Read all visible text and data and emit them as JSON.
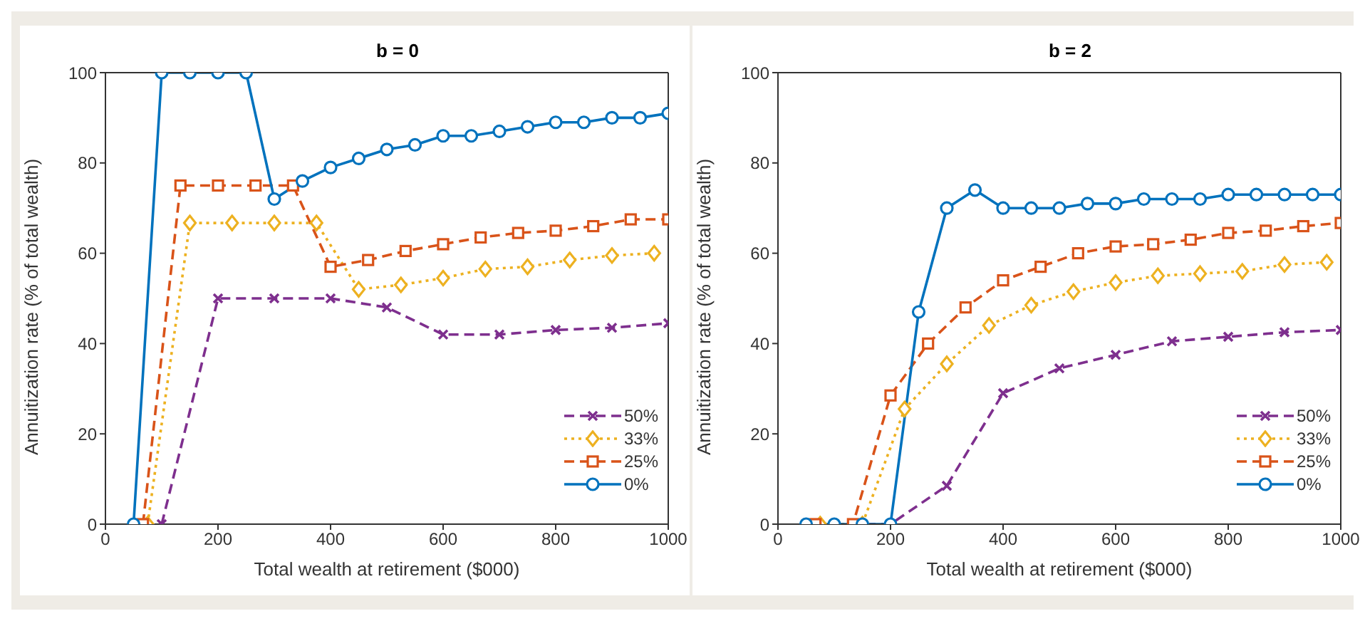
{
  "chart_data": [
    {
      "type": "line",
      "title": "b = 0",
      "xlabel": "Total wealth at retirement ($000)",
      "ylabel": "Annuitization rate (% of total wealth)",
      "xlim": [
        0,
        1000
      ],
      "xticks": [
        0,
        200,
        400,
        600,
        800,
        1000
      ],
      "ylim": [
        0,
        100
      ],
      "yticks": [
        0,
        20,
        40,
        60,
        80,
        100
      ],
      "grid": false,
      "legend": "bottom right",
      "series": [
        {
          "name": "50%",
          "color": "#7e2f8e",
          "marker": "cross",
          "line_style": "dashed",
          "x": [
            100,
            200,
            300,
            400,
            500,
            600,
            700,
            800,
            900,
            1000
          ],
          "values": [
            0,
            50,
            50,
            50,
            48,
            42,
            42,
            43,
            43.5,
            44.5
          ]
        },
        {
          "name": "33%",
          "color": "#edb120",
          "marker": "diamond",
          "line_style": "dotted",
          "x": [
            75,
            150,
            225,
            300,
            375,
            450,
            525,
            600,
            675,
            750,
            825,
            900,
            975
          ],
          "values": [
            0,
            66.7,
            66.7,
            66.7,
            66.7,
            52,
            53,
            54.5,
            56.5,
            57,
            58.5,
            59.5,
            60
          ]
        },
        {
          "name": "25%",
          "color": "#d95319",
          "marker": "square",
          "line_style": "dashed",
          "x": [
            66.7,
            133.3,
            200,
            266.7,
            333.3,
            400,
            466.7,
            533.3,
            600,
            666.7,
            733.3,
            800,
            866.7,
            933.3,
            1000
          ],
          "values": [
            0,
            75,
            75,
            75,
            75,
            57,
            58.5,
            60.5,
            62,
            63.5,
            64.5,
            65,
            66,
            67.5,
            67.5
          ]
        },
        {
          "name": "0%",
          "color": "#0072bd",
          "marker": "circle",
          "line_style": "solid",
          "x": [
            50,
            100,
            150,
            200,
            250,
            300,
            350,
            400,
            450,
            500,
            550,
            600,
            650,
            700,
            750,
            800,
            850,
            900,
            950,
            1000
          ],
          "values": [
            0,
            100,
            100,
            100,
            100,
            72,
            76,
            79,
            81,
            83,
            84,
            86,
            86,
            87,
            88,
            89,
            89,
            90,
            90,
            91
          ]
        }
      ]
    },
    {
      "type": "line",
      "title": "b = 2",
      "xlabel": "Total wealth at retirement ($000)",
      "ylabel": "Annuitization rate (% of total wealth)",
      "xlim": [
        0,
        1000
      ],
      "xticks": [
        0,
        200,
        400,
        600,
        800,
        1000
      ],
      "ylim": [
        0,
        100
      ],
      "yticks": [
        0,
        20,
        40,
        60,
        80,
        100
      ],
      "grid": false,
      "legend": "bottom right",
      "series": [
        {
          "name": "50%",
          "color": "#7e2f8e",
          "marker": "cross",
          "line_style": "dashed",
          "x": [
            100,
            200,
            300,
            400,
            500,
            600,
            700,
            800,
            900,
            1000
          ],
          "values": [
            0,
            0,
            8.5,
            29,
            34.5,
            37.5,
            40.5,
            41.5,
            42.5,
            43
          ]
        },
        {
          "name": "33%",
          "color": "#edb120",
          "marker": "diamond",
          "line_style": "dotted",
          "x": [
            75,
            150,
            225,
            300,
            375,
            450,
            525,
            600,
            675,
            750,
            825,
            900,
            975
          ],
          "values": [
            0,
            0,
            25.5,
            35.5,
            44,
            48.5,
            51.5,
            53.5,
            55,
            55.5,
            56,
            57.5,
            58
          ]
        },
        {
          "name": "25%",
          "color": "#d95319",
          "marker": "square",
          "line_style": "dashed",
          "x": [
            66.7,
            133.3,
            200,
            266.7,
            333.3,
            400,
            466.7,
            533.3,
            600,
            666.7,
            733.3,
            800,
            866.7,
            933.3,
            1000
          ],
          "values": [
            0,
            0,
            28.5,
            40,
            48,
            54,
            57,
            60,
            61.5,
            62,
            63,
            64.5,
            65,
            66,
            66.7
          ]
        },
        {
          "name": "0%",
          "color": "#0072bd",
          "marker": "circle",
          "line_style": "solid",
          "x": [
            50,
            100,
            150,
            200,
            250,
            300,
            350,
            400,
            450,
            500,
            550,
            600,
            650,
            700,
            750,
            800,
            850,
            900,
            950,
            1000
          ],
          "values": [
            0,
            0,
            0,
            0,
            47,
            70,
            74,
            70,
            70,
            70,
            71,
            71,
            72,
            72,
            72,
            73,
            73,
            73,
            73,
            73
          ]
        }
      ]
    }
  ]
}
